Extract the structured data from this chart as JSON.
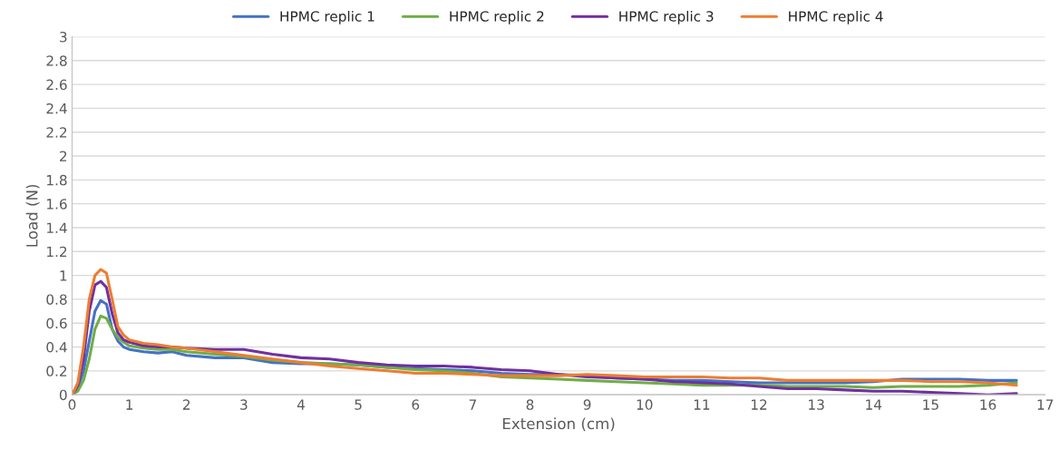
{
  "chart_data": {
    "type": "line",
    "xlabel": "Extension (cm)",
    "ylabel": "Load (N)",
    "x": [
      0,
      0.1,
      0.2,
      0.3,
      0.4,
      0.5,
      0.6,
      0.7,
      0.8,
      0.9,
      1,
      1.25,
      1.5,
      1.75,
      2,
      2.5,
      3,
      3.5,
      4,
      4.5,
      5,
      5.5,
      6,
      6.5,
      7,
      7.5,
      8,
      8.5,
      9,
      9.5,
      10,
      10.5,
      11,
      11.5,
      12,
      12.5,
      13,
      13.5,
      14,
      14.5,
      15,
      15.5,
      16,
      16.5
    ],
    "series": [
      {
        "name": "HPMC replic 1",
        "color": "#4472c4",
        "values": [
          0,
          0.05,
          0.2,
          0.45,
          0.7,
          0.79,
          0.76,
          0.55,
          0.45,
          0.4,
          0.38,
          0.36,
          0.35,
          0.36,
          0.33,
          0.31,
          0.31,
          0.27,
          0.26,
          0.26,
          0.25,
          0.23,
          0.22,
          0.21,
          0.2,
          0.18,
          0.17,
          0.17,
          0.16,
          0.14,
          0.13,
          0.12,
          0.12,
          0.11,
          0.1,
          0.1,
          0.1,
          0.1,
          0.11,
          0.13,
          0.13,
          0.13,
          0.12,
          0.12
        ]
      },
      {
        "name": "HPMC replic 2",
        "color": "#70ad47",
        "values": [
          0,
          0.03,
          0.12,
          0.3,
          0.55,
          0.66,
          0.64,
          0.55,
          0.48,
          0.44,
          0.41,
          0.39,
          0.38,
          0.38,
          0.36,
          0.34,
          0.32,
          0.29,
          0.27,
          0.26,
          0.25,
          0.23,
          0.21,
          0.2,
          0.18,
          0.15,
          0.14,
          0.13,
          0.12,
          0.11,
          0.1,
          0.09,
          0.08,
          0.08,
          0.08,
          0.07,
          0.07,
          0.07,
          0.06,
          0.07,
          0.07,
          0.07,
          0.08,
          0.1
        ]
      },
      {
        "name": "HPMC replic 3",
        "color": "#7030a0",
        "values": [
          0,
          0.08,
          0.3,
          0.7,
          0.92,
          0.95,
          0.9,
          0.68,
          0.52,
          0.46,
          0.44,
          0.41,
          0.4,
          0.4,
          0.39,
          0.38,
          0.38,
          0.34,
          0.31,
          0.3,
          0.27,
          0.25,
          0.24,
          0.24,
          0.23,
          0.21,
          0.2,
          0.17,
          0.15,
          0.14,
          0.13,
          0.11,
          0.1,
          0.09,
          0.07,
          0.05,
          0.05,
          0.04,
          0.03,
          0.03,
          0.02,
          0.01,
          0.0,
          0.01
        ]
      },
      {
        "name": "HPMC replic 4",
        "color": "#ed7d31",
        "values": [
          0,
          0.1,
          0.4,
          0.8,
          1.0,
          1.05,
          1.02,
          0.8,
          0.57,
          0.5,
          0.46,
          0.43,
          0.42,
          0.4,
          0.39,
          0.36,
          0.33,
          0.3,
          0.27,
          0.24,
          0.22,
          0.2,
          0.18,
          0.18,
          0.17,
          0.16,
          0.16,
          0.16,
          0.17,
          0.16,
          0.15,
          0.15,
          0.15,
          0.14,
          0.14,
          0.12,
          0.12,
          0.12,
          0.12,
          0.12,
          0.11,
          0.11,
          0.1,
          0.08
        ]
      }
    ],
    "xlim": [
      0,
      17
    ],
    "xticks": [
      0,
      1,
      2,
      3,
      4,
      5,
      6,
      7,
      8,
      9,
      10,
      11,
      12,
      13,
      14,
      15,
      16,
      17
    ],
    "ylim": [
      0,
      3
    ],
    "yticks": [
      0,
      {
        "value": 0.2,
        "label": "0.2"
      },
      {
        "value": 0.4,
        "label": "0.4"
      },
      {
        "value": 0.6,
        "label": "0.6"
      },
      {
        "value": 0.8,
        "label": "0.8"
      },
      1,
      {
        "value": 1.2,
        "label": "1.2"
      },
      {
        "value": 1.4,
        "label": "1.4"
      },
      {
        "value": 1.6,
        "label": "1.6"
      },
      {
        "value": 1.8,
        "label": "1.8"
      },
      2,
      {
        "value": 2.2,
        "label": "2.2"
      },
      {
        "value": 2.4,
        "label": "2.4"
      },
      {
        "value": 2.6,
        "label": "2.6"
      },
      {
        "value": 2.8,
        "label": "2.8"
      },
      3
    ],
    "grid": "y",
    "legend": "top",
    "marker": "none",
    "line_style": "solid"
  }
}
